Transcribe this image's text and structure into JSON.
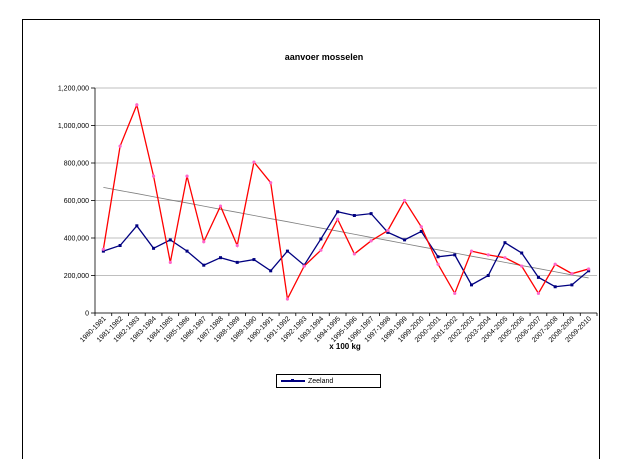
{
  "chart_data": {
    "type": "line",
    "title": "aanvoer mosselen",
    "xlabel": "x 100 kg",
    "ylabel": "",
    "ylim": [
      0,
      1200000
    ],
    "yticks": [
      0,
      200000,
      400000,
      600000,
      800000,
      1000000,
      1200000
    ],
    "ytick_labels": [
      "0",
      "200,000",
      "400,000",
      "600,000",
      "800,000",
      "1,000,000",
      "1,200,000"
    ],
    "grid": true,
    "legend_position": "bottom",
    "categories": [
      "1980-1981",
      "1981-1982",
      "1982-1983",
      "1983-1984",
      "1984-1985",
      "1985-1986",
      "1986-1987",
      "1987-1988",
      "1988-1989",
      "1989-1990",
      "1990-1991",
      "1991-1992",
      "1992-1993",
      "1993-1994",
      "1994-1995",
      "1995-1996",
      "1996-1997",
      "1997-1998",
      "1998-1999",
      "1999-2000",
      "2000-2001",
      "2001-2002",
      "2002-2003",
      "2003-2004",
      "2004-2005",
      "2005-2006",
      "2006-2007",
      "2007-2008",
      "2008-2009",
      "2009-2010"
    ],
    "series": [
      {
        "name": "Zeeland",
        "color": "#000080",
        "marker": "square",
        "values": [
          330000,
          360000,
          465000,
          345000,
          390000,
          330000,
          255000,
          295000,
          270000,
          285000,
          225000,
          330000,
          255000,
          395000,
          540000,
          520000,
          530000,
          430000,
          390000,
          435000,
          300000,
          310000,
          150000,
          200000,
          375000,
          320000,
          190000,
          140000,
          150000,
          225000
        ]
      },
      {
        "name": "",
        "color": "#ff0000",
        "marker": "dot",
        "values": [
          340000,
          890000,
          1110000,
          730000,
          270000,
          730000,
          380000,
          570000,
          360000,
          805000,
          695000,
          75000,
          250000,
          335000,
          500000,
          315000,
          385000,
          440000,
          600000,
          460000,
          260000,
          105000,
          330000,
          310000,
          295000,
          250000,
          105000,
          260000,
          210000,
          235000
        ]
      },
      {
        "name": "",
        "color": "#808080",
        "type": "trendline",
        "values": [
          670000,
          653000,
          637000,
          620000,
          603000,
          587000,
          570000,
          553000,
          537000,
          520000,
          503000,
          487000,
          470000,
          453000,
          437000,
          420000,
          403000,
          387000,
          370000,
          353000,
          337000,
          320000,
          303000,
          287000,
          270000,
          253000,
          237000,
          220000,
          203000,
          187000
        ]
      }
    ]
  }
}
